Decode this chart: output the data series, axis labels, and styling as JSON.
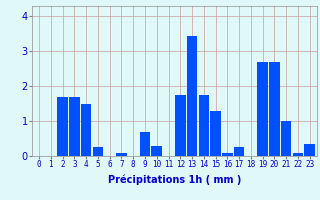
{
  "hours": [
    0,
    1,
    2,
    3,
    4,
    5,
    6,
    7,
    8,
    9,
    10,
    11,
    12,
    13,
    14,
    15,
    16,
    17,
    18,
    19,
    20,
    21,
    22,
    23
  ],
  "values": [
    0.0,
    0.0,
    1.7,
    1.7,
    1.5,
    0.25,
    0.0,
    0.1,
    0.0,
    0.7,
    0.3,
    0.0,
    1.75,
    3.45,
    1.75,
    1.3,
    0.1,
    0.25,
    0.0,
    2.7,
    2.7,
    1.0,
    0.1,
    0.35
  ],
  "bar_color": "#0050FF",
  "bg_color": "#E0F8F8",
  "grid_color": "#C8A0A0",
  "xlabel": "Précipitations 1h ( mm )",
  "xlabel_color": "#0000CC",
  "xlabel_fontsize": 7,
  "tick_color": "#0000CC",
  "tick_fontsize": 5.5,
  "ytick_fontsize": 7,
  "ylim": [
    0,
    4.3
  ],
  "yticks": [
    0,
    1,
    2,
    3,
    4
  ]
}
